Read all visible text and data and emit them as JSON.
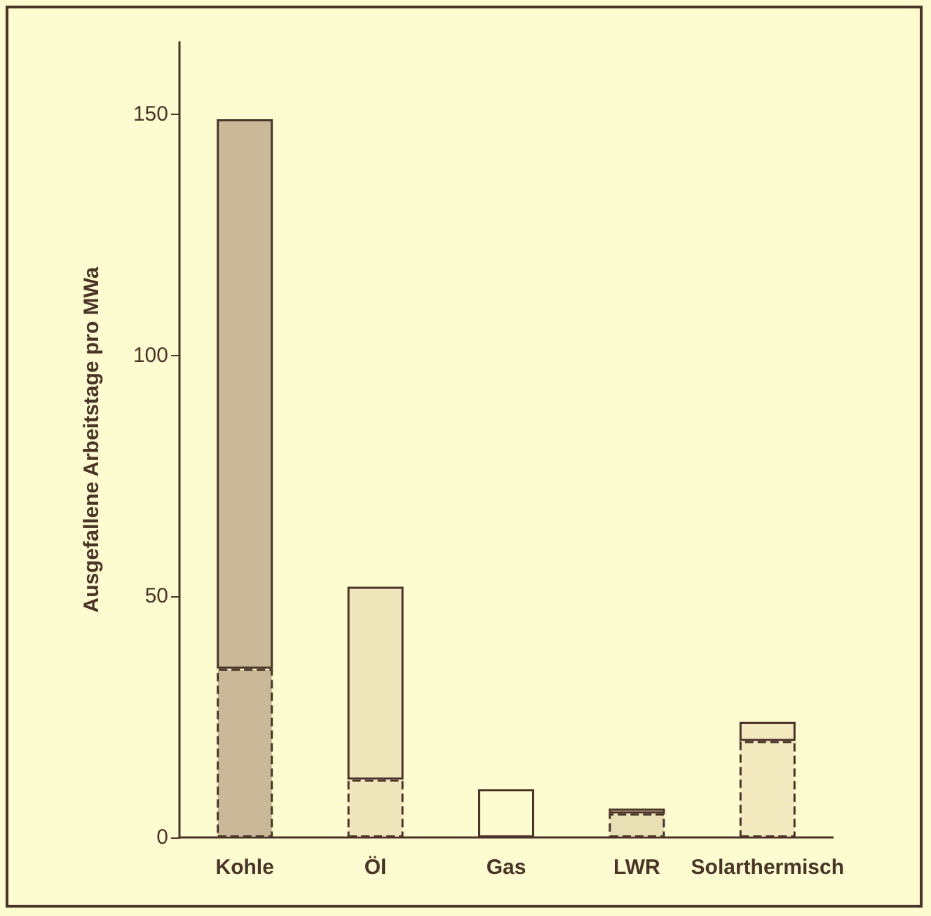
{
  "chart_data": {
    "type": "bar",
    "stacked": true,
    "ylabel": "Ausgefallene Arbeitstage pro MWa",
    "categories": [
      "Kohle",
      "Öl",
      "Gas",
      "LWR",
      "Solarthermisch"
    ],
    "series": [
      {
        "colors": [
          "#c9b999",
          "#efe6bb",
          "#fdfbd0",
          "#e9e0b6",
          "#f3eac0"
        ],
        "values": [
          35,
          12,
          null,
          5,
          20
        ],
        "line_style": "dashed"
      },
      {
        "colors": [
          "#c9b999",
          "#efe6bb",
          "#fdfbd0",
          "#e9e0b6",
          "#f3eac0"
        ],
        "values": [
          114,
          40,
          10,
          1,
          4
        ],
        "line_style": "solid"
      }
    ],
    "ylim": [
      0,
      165
    ],
    "yticks": [
      0,
      50,
      100,
      150
    ],
    "grid": false
  }
}
